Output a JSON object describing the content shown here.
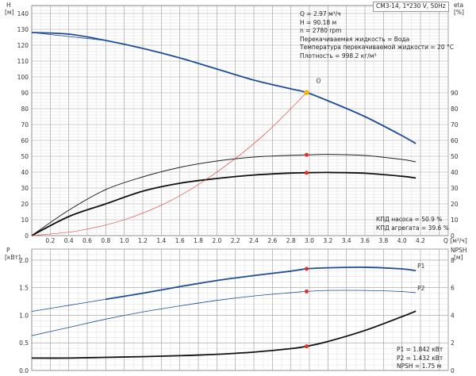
{
  "header": {
    "model": "CM3-14, 1*230 V, 50Hz"
  },
  "info_top": [
    "Q = 2.97 м³/ч",
    "H = 90.18 м",
    "n = 2780 rpm",
    "Перекачиваемая жидкость = Вода",
    "Температура перекачиваемой жидкости = 20 °C",
    "Плотность = 998.2 кг/м³"
  ],
  "info_eff": [
    "КПД насоса = 50.9 %",
    "КПД агрегата = 39.6 %"
  ],
  "info_power": [
    "P1 = 1.842 кВт",
    "P2 = 1.432 кВт",
    "NPSH = 1.75 м"
  ],
  "colors": {
    "blue": "#1f4e96",
    "black": "#111111",
    "red": "#e03030",
    "orange": "#f4b400",
    "grid": "#d6d6d6",
    "gridMajor": "#9a9a9a"
  },
  "chart_data": [
    {
      "type": "line",
      "title": "",
      "x_label": "Q [м³/ч]",
      "x_ticks": [
        "0.2",
        "0.4",
        "0.6",
        "0.8",
        "1.0",
        "1.2",
        "1.4",
        "1.6",
        "1.8",
        "2.0",
        "2.2",
        "2.4",
        "2.6",
        "2.8",
        "3.0",
        "3.2",
        "3.4",
        "3.6",
        "3.8",
        "4.0",
        "4.2"
      ],
      "xlim": [
        0,
        4.5
      ],
      "left_axis": {
        "label_top": "H",
        "label_unit": "[м]",
        "ylim": [
          0,
          145
        ],
        "ticks": [
          "0",
          "10",
          "20",
          "30",
          "40",
          "50",
          "60",
          "70",
          "80",
          "90",
          "100",
          "110",
          "120",
          "130",
          "140"
        ]
      },
      "right_axis": {
        "label_top": "eta",
        "label_unit": "[%]",
        "ticks": [
          "0",
          "10",
          "20",
          "30",
          "40",
          "50",
          "60",
          "70",
          "80",
          "90"
        ]
      },
      "series": [
        {
          "role": "head",
          "style": "blue-thick",
          "x": [
            0,
            0.4,
            0.8,
            1.2,
            1.6,
            2.0,
            2.4,
            2.8,
            2.97,
            3.2,
            3.6,
            4.0,
            4.15
          ],
          "y": [
            128,
            127,
            123,
            118,
            112,
            105,
            98,
            92.5,
            90.2,
            85,
            75,
            63,
            58
          ]
        },
        {
          "role": "head-extended",
          "style": "blue-thin",
          "x": [
            0,
            0.8
          ],
          "y": [
            128,
            123
          ]
        },
        {
          "role": "pump-efficiency",
          "style": "black-mid",
          "x": [
            0,
            0.4,
            0.8,
            1.2,
            1.6,
            2.0,
            2.4,
            2.8,
            2.97,
            3.2,
            3.6,
            4.0,
            4.15
          ],
          "y": [
            0,
            16,
            29,
            37,
            43,
            47,
            49.5,
            50.6,
            50.9,
            51.2,
            50.5,
            48,
            46.5
          ]
        },
        {
          "role": "unit-efficiency",
          "style": "black-thick",
          "x": [
            0,
            0.4,
            0.8,
            1.2,
            1.6,
            2.0,
            2.4,
            2.8,
            2.97,
            3.2,
            3.6,
            4.0,
            4.15
          ],
          "y": [
            0,
            12,
            20,
            28,
            33,
            36,
            38.2,
            39.4,
            39.6,
            39.8,
            39.3,
            37.4,
            36.3
          ]
        },
        {
          "role": "system-curve",
          "style": "red-thin",
          "x": [
            0,
            0.5,
            1.0,
            1.5,
            2.0,
            2.5,
            2.97
          ],
          "y": [
            0,
            3,
            10,
            22,
            40,
            63,
            90.2
          ]
        }
      ],
      "duty_point": {
        "x": 2.97,
        "head": 90.18,
        "eta_pump": 50.9,
        "eta_unit": 39.6
      },
      "marker_label": "O"
    },
    {
      "type": "line",
      "title": "",
      "x_label": "Q [м³/ч]",
      "xlim": [
        0,
        4.5
      ],
      "left_axis": {
        "label_top": "P",
        "label_unit": "[кВт]",
        "ylim": [
          0,
          2.2
        ],
        "ticks": [
          "0.0",
          "0.5",
          "1.0",
          "1.5",
          "2.0"
        ]
      },
      "right_axis": {
        "label_top": "NPSH",
        "label_unit": "[м]",
        "ylim": [
          0,
          8.8
        ],
        "ticks": [
          "0",
          "2",
          "4",
          "6",
          "8"
        ]
      },
      "series": [
        {
          "name": "P1",
          "style": "blue-thick",
          "x": [
            0.8,
            1.2,
            1.6,
            2.0,
            2.4,
            2.8,
            2.97,
            3.2,
            3.6,
            4.0,
            4.15
          ],
          "y": [
            1.29,
            1.4,
            1.52,
            1.63,
            1.72,
            1.8,
            1.842,
            1.86,
            1.87,
            1.84,
            1.81
          ]
        },
        {
          "name": "P2",
          "style": "blue-thin",
          "x": [
            0,
            0.4,
            0.8,
            1.2,
            1.6,
            2.0,
            2.4,
            2.8,
            2.97,
            3.2,
            3.6,
            4.0,
            4.15
          ],
          "y": [
            0.63,
            0.78,
            0.93,
            1.06,
            1.17,
            1.27,
            1.35,
            1.41,
            1.432,
            1.45,
            1.45,
            1.43,
            1.41
          ]
        },
        {
          "role": "P1-extended",
          "style": "blue-thin",
          "x": [
            0,
            0.4,
            0.8
          ],
          "y": [
            1.07,
            1.18,
            1.29
          ]
        },
        {
          "role": "npsh",
          "style": "black-thick",
          "axis": "right",
          "x": [
            0,
            0.4,
            0.8,
            1.2,
            1.6,
            2.0,
            2.4,
            2.8,
            2.97,
            3.2,
            3.6,
            4.0,
            4.15
          ],
          "y": [
            0.9,
            0.9,
            0.95,
            1.0,
            1.07,
            1.17,
            1.33,
            1.58,
            1.75,
            2.1,
            2.9,
            3.9,
            4.3
          ]
        }
      ],
      "duty_point": {
        "x": 2.97,
        "P1": 1.842,
        "P2": 1.432,
        "NPSH": 1.75
      }
    }
  ]
}
